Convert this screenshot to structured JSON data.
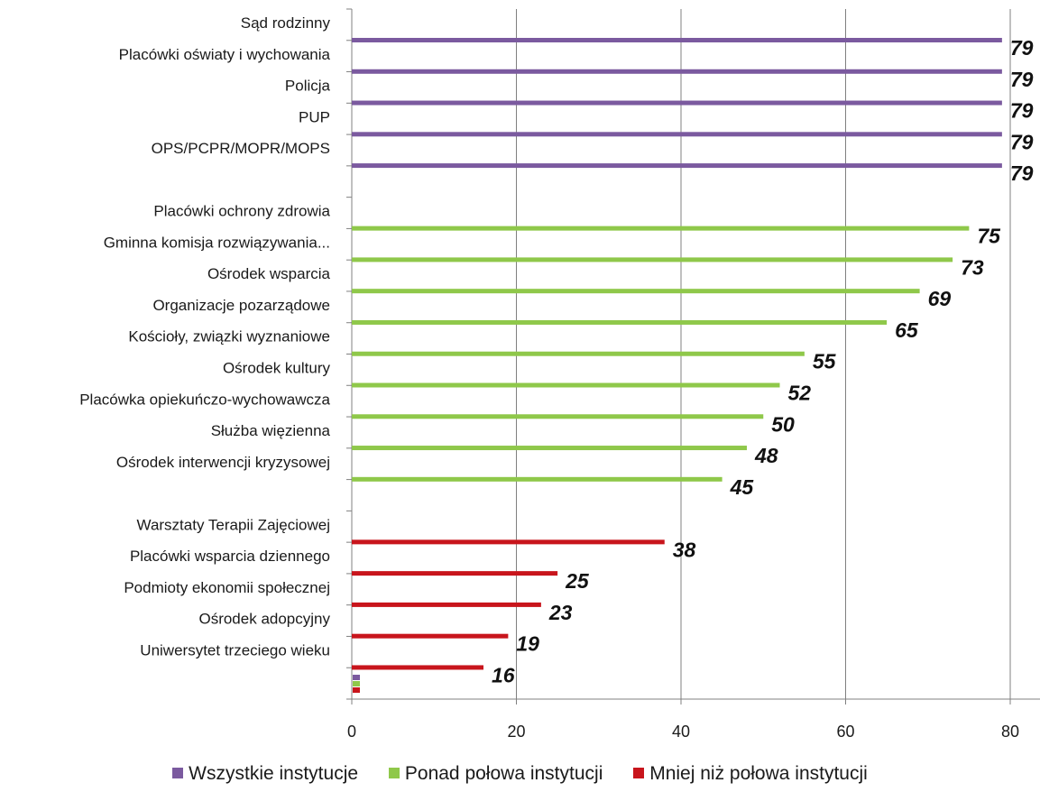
{
  "chart_data": {
    "type": "bar",
    "orientation": "horizontal",
    "xlim": [
      0,
      80
    ],
    "xticks": [
      "0",
      "20",
      "40",
      "60",
      "80"
    ],
    "grid": "vertical",
    "legend_position": "bottom",
    "colors": {
      "Wszystkie instytucje": "#7b5a9f",
      "Ponad połowa instytucji": "#8fc84a",
      "Mniej niż połowa instytucji": "#c8151c",
      "axis": "#808080"
    },
    "series": [
      {
        "name": "Wszystkie instytucje",
        "categories": [
          "Sąd rodzinny",
          "Placówki oświaty i wychowania",
          "Policja",
          "PUP",
          "OPS/PCPR/MOPR/MOPS"
        ],
        "values": [
          79,
          79,
          79,
          79,
          79
        ],
        "labels": [
          "79",
          "79",
          "79",
          "79",
          "79"
        ]
      },
      {
        "name": "Ponad połowa instytucji",
        "categories": [
          "Placówki ochrony zdrowia",
          "Gminna komisja rozwiązywania...",
          "Ośrodek wsparcia",
          "Organizacje pozarządowe",
          "Kościoły, związki wyznaniowe",
          "Ośrodek kultury",
          "Placówka opiekuńczo-wychowawcza",
          "Służba więzienna",
          "Ośrodek interwencji kryzysowej"
        ],
        "values": [
          75,
          73,
          69,
          65,
          55,
          52,
          50,
          48,
          45
        ],
        "labels": [
          "75",
          "73",
          "69",
          "65",
          "55",
          "52",
          "50",
          "48",
          "45"
        ]
      },
      {
        "name": "Mniej niż połowa instytucji",
        "categories": [
          "Warsztaty Terapii Zajęciowej",
          "Placówki wsparcia dziennego",
          "Podmioty ekonomii społecznej",
          "Ośrodek adopcyjny",
          "Uniwersytet trzeciego wieku"
        ],
        "values": [
          38,
          25,
          23,
          19,
          16
        ],
        "labels": [
          "38",
          "25",
          "23",
          "19",
          "16"
        ]
      }
    ]
  }
}
